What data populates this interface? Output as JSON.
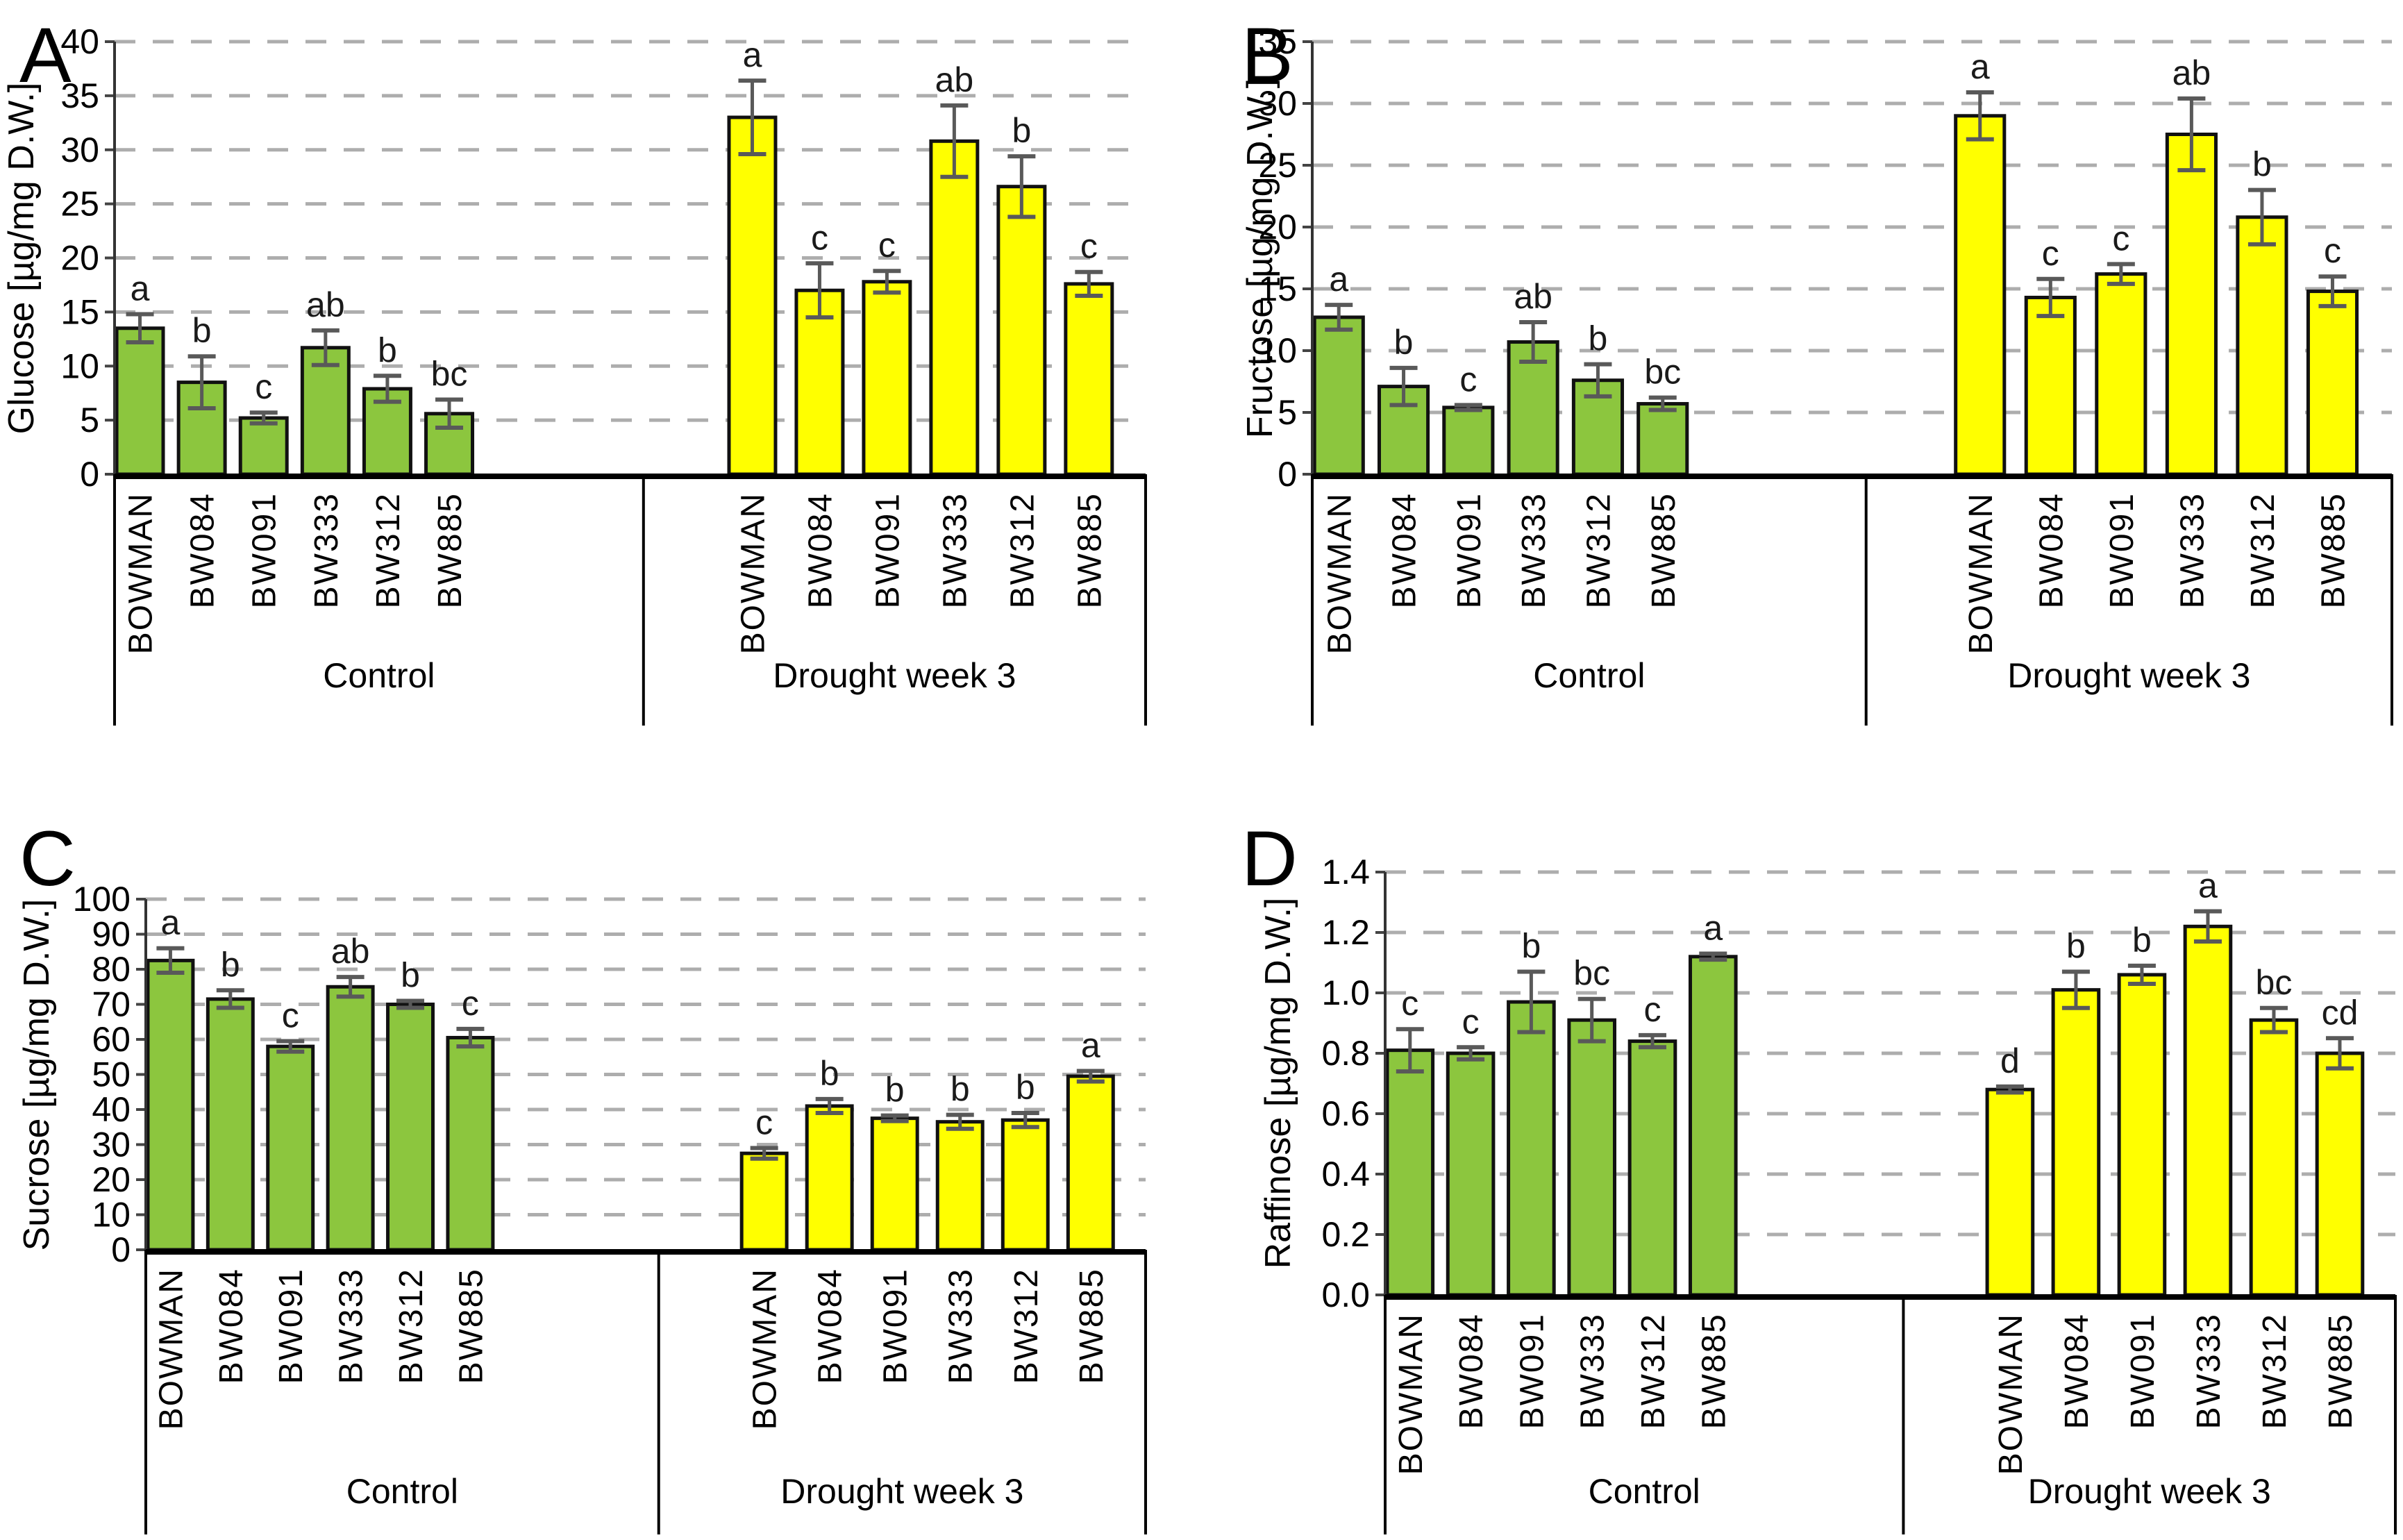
{
  "figure": {
    "conditions": [
      {
        "label": "Control",
        "color": "#8CC63E"
      },
      {
        "label": "Drought week 3",
        "color": "#FFFF00"
      }
    ],
    "categories": [
      "BOWMAN",
      "BW084",
      "BW091",
      "BW333",
      "BW312",
      "BW885"
    ],
    "error_bar_color": "#595959",
    "gridline_color": "#ADADAD",
    "bar_outline_color": "#111111"
  },
  "chart_data": [
    {
      "type": "bar",
      "panel": "A",
      "ylabel": "Glucose [µg/mg D.W.]",
      "ylim": [
        0,
        40
      ],
      "ytick_step": 5,
      "decimals": 0,
      "grid": true,
      "categories": [
        "BOWMAN",
        "BW084",
        "BW091",
        "BW333",
        "BW312",
        "BW885"
      ],
      "group_labels": [
        "Control",
        "Drought week 3"
      ],
      "series": [
        {
          "name": "Control",
          "color": "#8CC63E",
          "values": [
            13.5,
            8.5,
            5.2,
            11.7,
            7.9,
            5.6
          ],
          "errors": [
            1.3,
            2.4,
            0.5,
            1.6,
            1.2,
            1.3
          ],
          "letters": [
            "a",
            "b",
            "c",
            "ab",
            "b",
            "bc"
          ]
        },
        {
          "name": "Drought week 3",
          "color": "#FFFF00",
          "values": [
            33.0,
            17.0,
            17.8,
            30.8,
            26.6,
            17.6
          ],
          "errors": [
            3.4,
            2.5,
            1.0,
            3.3,
            2.8,
            1.1
          ],
          "letters": [
            "a",
            "c",
            "c",
            "ab",
            "b",
            "c"
          ]
        }
      ]
    },
    {
      "type": "bar",
      "panel": "B",
      "ylabel": "Fructose [µg/mg D.W.]",
      "ylim": [
        0,
        35
      ],
      "ytick_step": 5,
      "decimals": 0,
      "grid": true,
      "categories": [
        "BOWMAN",
        "BW084",
        "BW091",
        "BW333",
        "BW312",
        "BW885"
      ],
      "group_labels": [
        "Control",
        "Drought week 3"
      ],
      "series": [
        {
          "name": "Control",
          "color": "#8CC63E",
          "values": [
            12.7,
            7.1,
            5.4,
            10.7,
            7.6,
            5.7
          ],
          "errors": [
            1.0,
            1.5,
            0.2,
            1.6,
            1.3,
            0.5
          ],
          "letters": [
            "a",
            "b",
            "c",
            "ab",
            "b",
            "bc"
          ]
        },
        {
          "name": "Drought week 3",
          "color": "#FFFF00",
          "values": [
            29.0,
            14.3,
            16.2,
            27.5,
            20.8,
            14.8
          ],
          "errors": [
            1.9,
            1.5,
            0.8,
            2.9,
            2.2,
            1.2
          ],
          "letters": [
            "a",
            "c",
            "c",
            "ab",
            "b",
            "c"
          ]
        }
      ]
    },
    {
      "type": "bar",
      "panel": "C",
      "ylabel": "Sucrose [µg/mg D.W.]",
      "ylim": [
        0,
        100
      ],
      "ytick_step": 10,
      "decimals": 0,
      "grid": true,
      "categories": [
        "BOWMAN",
        "BW084",
        "BW091",
        "BW333",
        "BW312",
        "BW885"
      ],
      "group_labels": [
        "Control",
        "Drought week 3"
      ],
      "series": [
        {
          "name": "Control",
          "color": "#8CC63E",
          "values": [
            82.5,
            71.5,
            58.0,
            75.0,
            70.0,
            60.5
          ],
          "errors": [
            3.5,
            2.5,
            1.5,
            2.8,
            1.0,
            2.5
          ],
          "letters": [
            "a",
            "b",
            "c",
            "ab",
            "b",
            "c"
          ]
        },
        {
          "name": "Drought week 3",
          "color": "#FFFF00",
          "values": [
            27.5,
            41.0,
            37.5,
            36.5,
            37.0,
            49.5
          ],
          "errors": [
            1.5,
            2.0,
            0.8,
            2.0,
            2.0,
            1.5
          ],
          "letters": [
            "c",
            "b",
            "b",
            "b",
            "b",
            "a"
          ]
        }
      ]
    },
    {
      "type": "bar",
      "panel": "D",
      "ylabel": "Raffinose [µg/mg D.W.]",
      "ylim": [
        0,
        1.4
      ],
      "ytick_step": 0.2,
      "decimals": 1,
      "grid": true,
      "categories": [
        "BOWMAN",
        "BW084",
        "BW091",
        "BW333",
        "BW312",
        "BW885"
      ],
      "group_labels": [
        "Control",
        "Drought week 3"
      ],
      "series": [
        {
          "name": "Control",
          "color": "#8CC63E",
          "values": [
            0.81,
            0.8,
            0.97,
            0.91,
            0.84,
            1.12
          ],
          "errors": [
            0.07,
            0.02,
            0.1,
            0.07,
            0.02,
            0.01
          ],
          "letters": [
            "c",
            "c",
            "b",
            "bc",
            "c",
            "a"
          ]
        },
        {
          "name": "Drought week 3",
          "color": "#FFFF00",
          "values": [
            0.68,
            1.01,
            1.06,
            1.22,
            0.91,
            0.8
          ],
          "errors": [
            0.01,
            0.06,
            0.03,
            0.05,
            0.04,
            0.05
          ],
          "letters": [
            "d",
            "b",
            "b",
            "a",
            "bc",
            "cd"
          ]
        }
      ]
    }
  ]
}
